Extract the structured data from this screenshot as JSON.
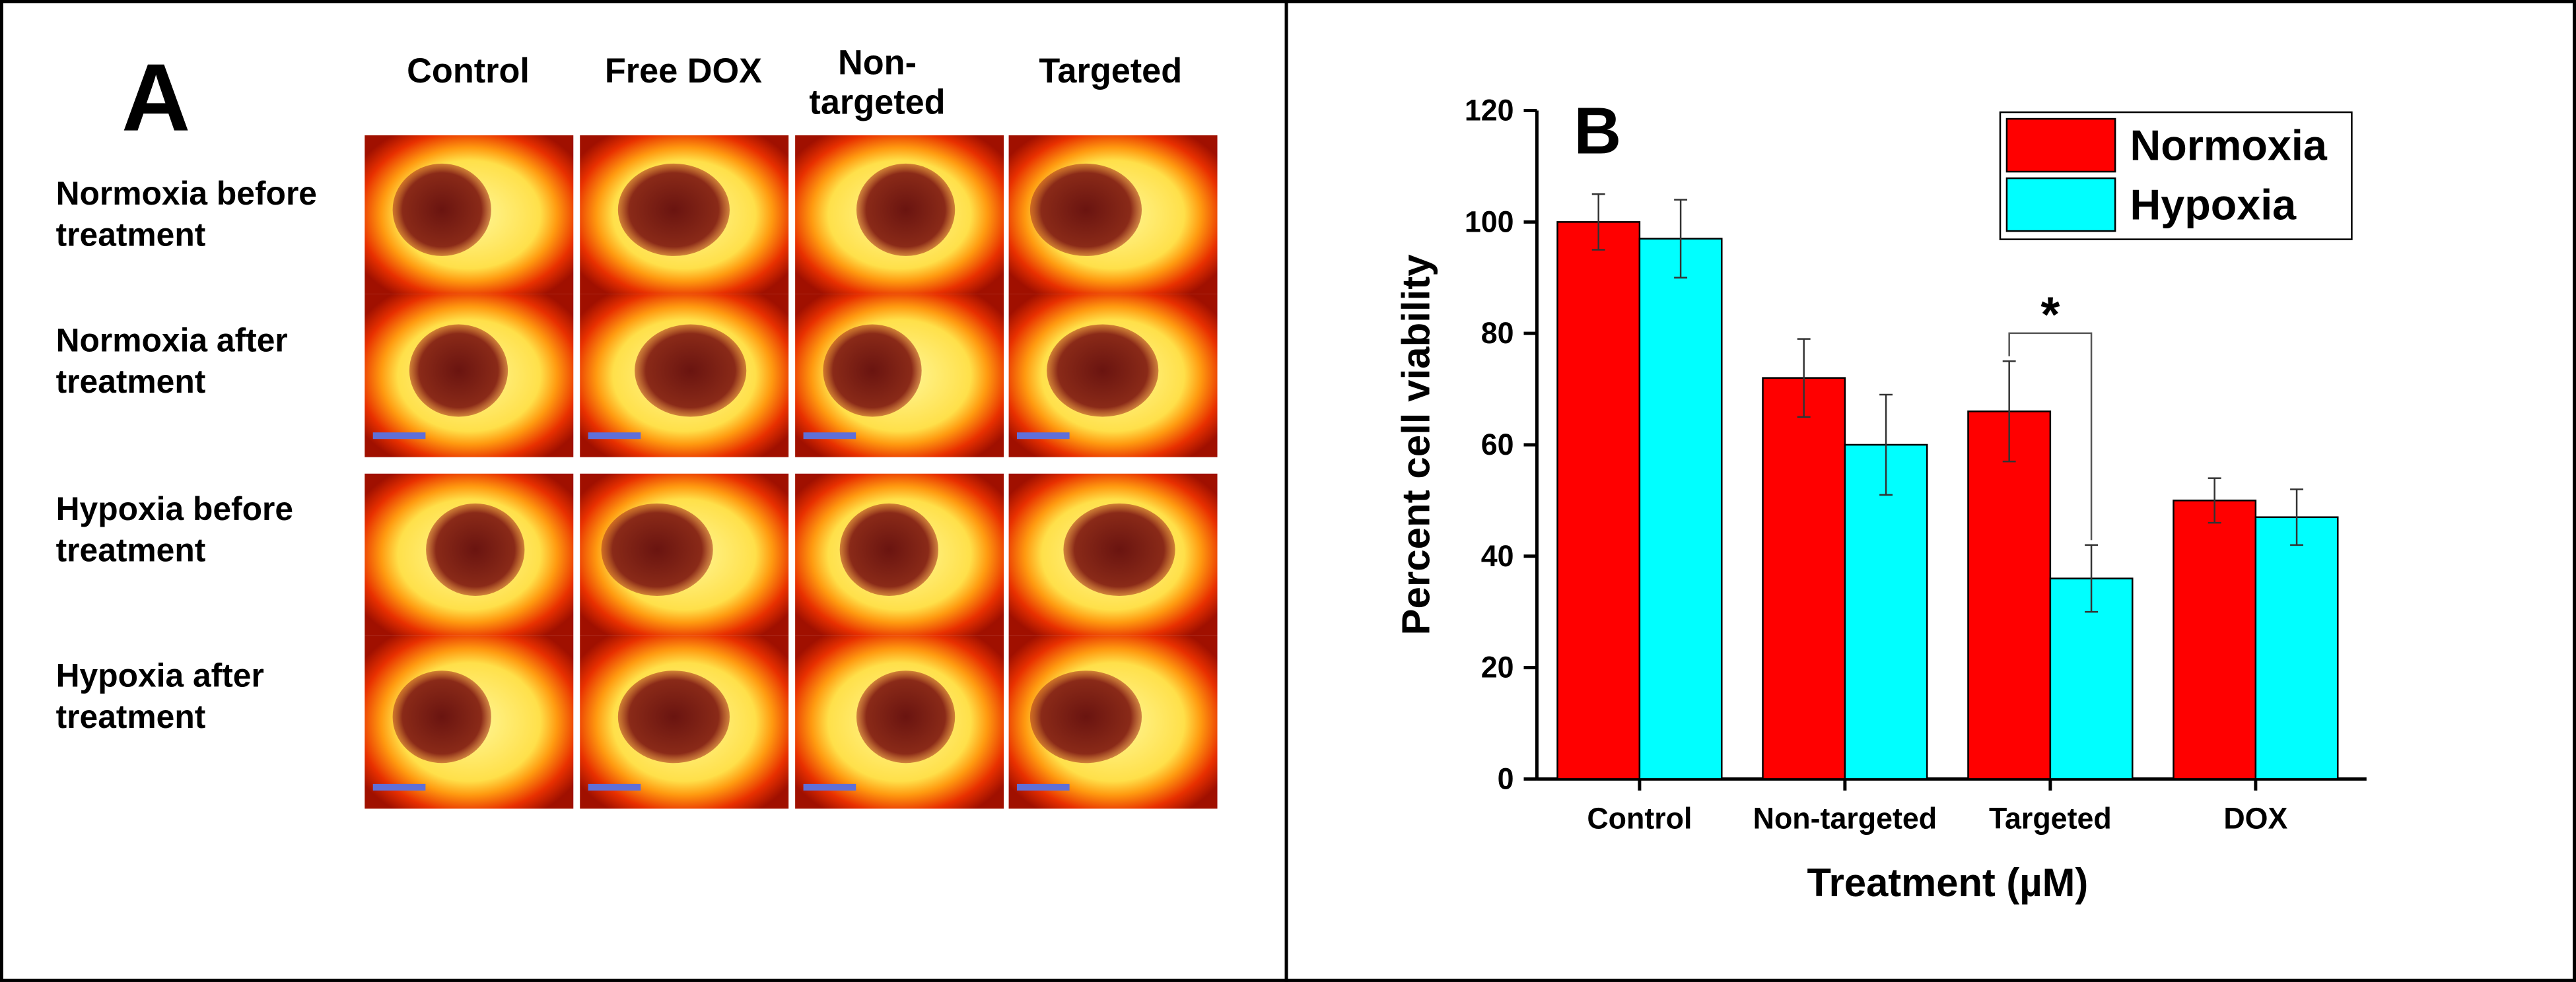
{
  "panel_a": {
    "label": "A",
    "columns": [
      "Control",
      "Free DOX",
      "Non-targeted",
      "Targeted"
    ],
    "rows": [
      "Normoxia before treatment",
      "Normoxia after treatment",
      "Hypoxia before treatment",
      "Hypoxia after treatment"
    ]
  },
  "chart_data": {
    "type": "bar",
    "label": "B",
    "x_label": "Treatment (µM)",
    "y_label": "Percent cell viability",
    "categories": [
      "Control",
      "Non-targeted",
      "Targeted",
      "DOX"
    ],
    "series": [
      {
        "name": "Normoxia",
        "color": "#ff0000",
        "values": [
          100,
          72,
          66,
          50
        ],
        "errors": [
          5,
          7,
          9,
          4
        ]
      },
      {
        "name": "Hypoxia",
        "color": "#00ffff",
        "values": [
          97,
          60,
          36,
          47
        ],
        "errors": [
          7,
          9,
          6,
          5
        ]
      }
    ],
    "ylim": [
      0,
      120
    ],
    "yticks": [
      0,
      20,
      40,
      60,
      80,
      100,
      120
    ],
    "annotation": "*",
    "legend": "top-right"
  }
}
